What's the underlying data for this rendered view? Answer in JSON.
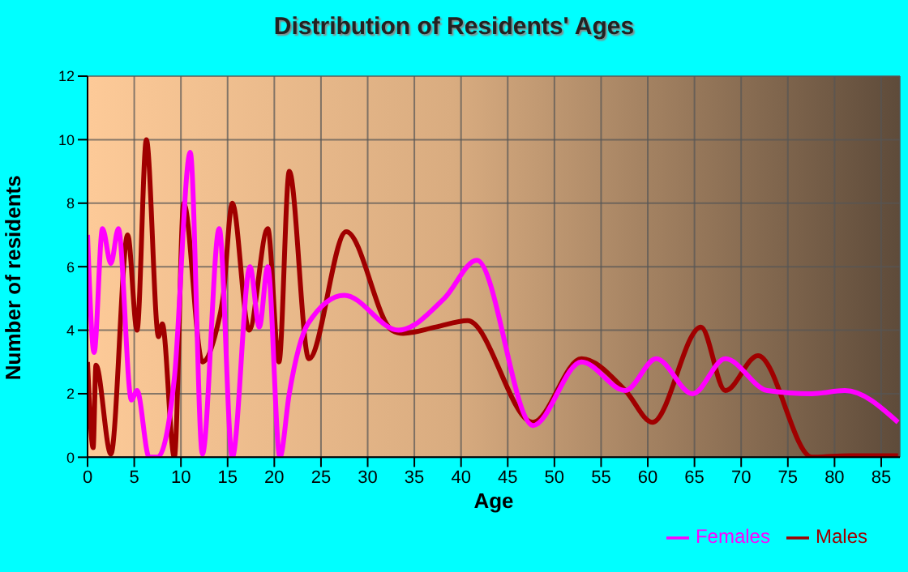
{
  "chart_data": {
    "type": "line",
    "title": "Distribution of Residents' Ages",
    "xlabel": "Age",
    "ylabel": "Number of residents",
    "xlim": [
      0,
      87
    ],
    "xticks": [
      0,
      5,
      10,
      15,
      20,
      25,
      30,
      35,
      40,
      45,
      50,
      55,
      60,
      65,
      70,
      75,
      80,
      85
    ],
    "ylim": [
      0,
      12
    ],
    "yticks": [
      0,
      2,
      4,
      6,
      8,
      10,
      12
    ],
    "grid": true,
    "legend": "bottom right",
    "line_style": "solid",
    "marker": "none",
    "series": [
      {
        "name": "Males",
        "color": "#a00000",
        "x": [
          0,
          0.6,
          0.9,
          2.5,
          4.3,
          5.3,
          6.3,
          7.6,
          8,
          9.3,
          10.3,
          12.3,
          13.8,
          14.5,
          15.5,
          17.3,
          19.3,
          20.5,
          21.6,
          23.7,
          27.7,
          32.6,
          33.8,
          37.3,
          40.7,
          47.7,
          52.9,
          57.6,
          60.5,
          65.7,
          68.3,
          71.8,
          77.6,
          81.6,
          86.8
        ],
        "values": [
          3,
          0.3,
          2.9,
          0.1,
          7,
          4,
          10,
          3.8,
          4.2,
          0,
          8,
          3,
          4,
          5,
          8,
          4,
          7.2,
          3,
          9,
          3.1,
          7.1,
          4,
          3.9,
          4.1,
          4.3,
          1.1,
          3.1,
          2.1,
          1.1,
          4.1,
          2.1,
          3.2,
          0,
          0.05,
          0.05
        ]
      },
      {
        "name": "Females",
        "color": "#ff00ff",
        "x": [
          0,
          0.7,
          1.6,
          2.5,
          3.3,
          4.7,
          5.3,
          6.6,
          7.5,
          9.3,
          11,
          12.3,
          14.1,
          15.5,
          17.4,
          18.4,
          19.3,
          20.6,
          21.6,
          23.6,
          27.5,
          33.3,
          38.2,
          41.7,
          47.7,
          52.9,
          57.6,
          60.9,
          64.8,
          68.3,
          72.8,
          77.6,
          81.1,
          86.8
        ],
        "values": [
          7,
          3.3,
          7.2,
          6.1,
          7.2,
          1.8,
          2.1,
          0,
          0,
          2.5,
          9.6,
          0.1,
          7.2,
          0,
          6,
          4.1,
          6,
          0,
          2,
          4.2,
          5.1,
          4,
          5,
          6.2,
          1,
          3,
          2.1,
          3.1,
          2,
          3.1,
          2.1,
          2,
          2.1,
          1.1
        ]
      }
    ]
  }
}
